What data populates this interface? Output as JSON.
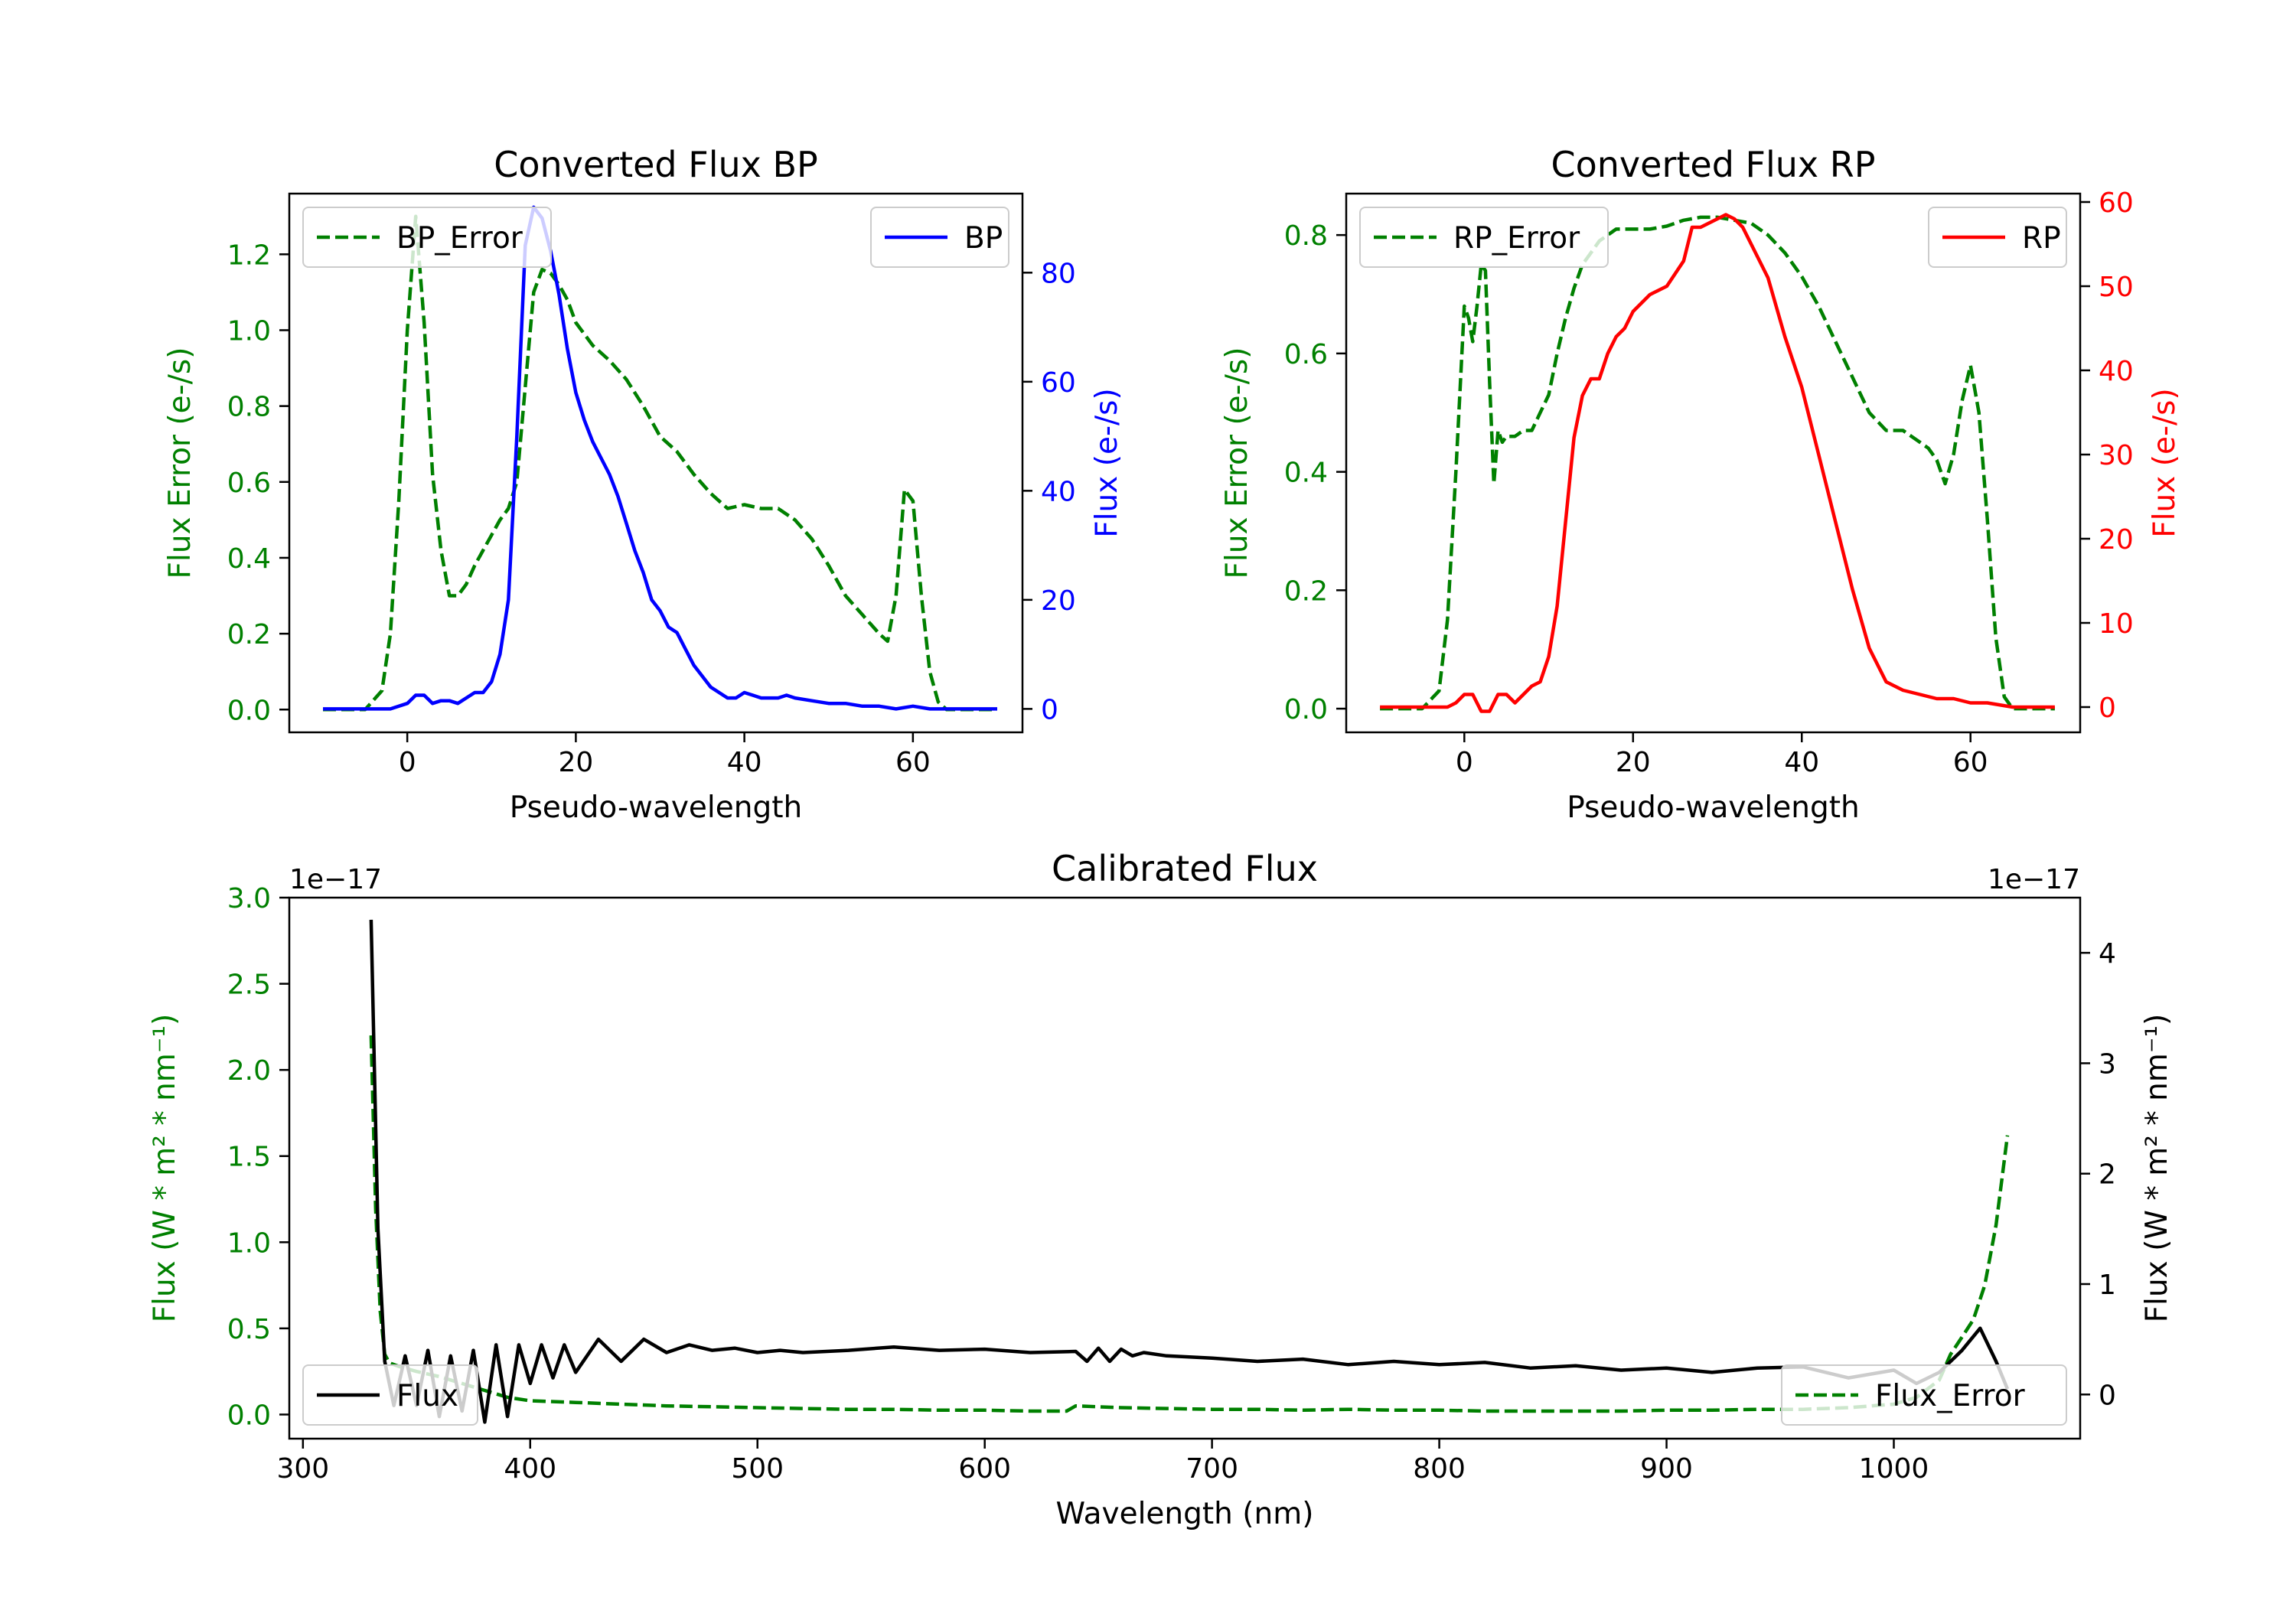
{
  "chart_data": [
    {
      "type": "line",
      "title": "Converted Flux BP",
      "xlabel": "Pseudo-wavelength",
      "xlim": [
        -14,
        73
      ],
      "x_ticks": [
        0,
        20,
        40,
        60
      ],
      "left_axis": {
        "label": "Flux Error (e-/s)",
        "color": "#008000",
        "ylim": [
          -0.06,
          1.36
        ],
        "ticks": [
          0.0,
          0.2,
          0.4,
          0.6,
          0.8,
          1.0,
          1.2
        ],
        "tick_labels": [
          "0.0",
          "0.2",
          "0.4",
          "0.6",
          "0.8",
          "1.0",
          "1.2"
        ]
      },
      "right_axis": {
        "label": "Flux (e-/s)",
        "color": "#0000ff",
        "ylim": [
          -4.3,
          94.5
        ],
        "ticks": [
          0,
          20,
          40,
          60,
          80
        ],
        "tick_labels": [
          "0",
          "20",
          "40",
          "60",
          "80"
        ]
      },
      "series": [
        {
          "name": "BP_Error",
          "axis": "left",
          "color": "#008000",
          "dash": true,
          "x": [
            -10,
            -5,
            -3,
            -2,
            -1,
            0,
            1,
            2,
            3,
            4,
            5,
            6,
            7,
            8,
            9,
            10,
            11,
            12,
            13,
            14,
            15,
            16,
            17,
            18,
            19,
            20,
            22,
            24,
            26,
            28,
            30,
            32,
            34,
            36,
            38,
            40,
            42,
            44,
            46,
            48,
            50,
            52,
            54,
            56,
            57,
            58,
            59,
            60,
            61,
            62,
            63,
            64,
            65,
            70
          ],
          "y": [
            0.0,
            0.0,
            0.05,
            0.2,
            0.55,
            1.0,
            1.3,
            1.02,
            0.62,
            0.42,
            0.3,
            0.3,
            0.33,
            0.38,
            0.42,
            0.46,
            0.5,
            0.53,
            0.6,
            0.85,
            1.1,
            1.16,
            1.15,
            1.12,
            1.08,
            1.02,
            0.96,
            0.92,
            0.87,
            0.8,
            0.72,
            0.68,
            0.62,
            0.57,
            0.53,
            0.54,
            0.53,
            0.53,
            0.5,
            0.45,
            0.38,
            0.3,
            0.25,
            0.2,
            0.18,
            0.3,
            0.58,
            0.55,
            0.3,
            0.1,
            0.02,
            0.0,
            0.0,
            0.0
          ]
        },
        {
          "name": "BP",
          "axis": "right",
          "color": "#0000ff",
          "dash": false,
          "x": [
            -10,
            -5,
            -2,
            0,
            1,
            2,
            3,
            4,
            5,
            6,
            7,
            8,
            9,
            10,
            11,
            12,
            13,
            14,
            15,
            16,
            17,
            18,
            19,
            20,
            21,
            22,
            23,
            24,
            25,
            26,
            27,
            28,
            29,
            30,
            31,
            32,
            33,
            34,
            35,
            36,
            37,
            38,
            39,
            40,
            41,
            42,
            43,
            44,
            45,
            46,
            48,
            50,
            52,
            54,
            56,
            58,
            60,
            62,
            65,
            70
          ],
          "y": [
            0,
            0,
            0,
            1,
            2.5,
            2.5,
            1,
            1.5,
            1.5,
            1,
            2,
            3,
            3,
            5,
            10,
            20,
            50,
            85,
            92,
            90,
            84,
            76,
            66,
            58,
            53,
            49,
            46,
            43,
            39,
            34,
            29,
            25,
            20,
            18,
            15,
            14,
            11,
            8,
            6,
            4,
            3,
            2,
            2,
            3,
            2.5,
            2,
            2,
            2,
            2.5,
            2,
            1.5,
            1,
            1,
            0.5,
            0.5,
            0,
            0.5,
            0,
            0,
            0
          ]
        }
      ],
      "legends": [
        {
          "position": "upper left",
          "entries": [
            "BP_Error"
          ]
        },
        {
          "position": "upper right",
          "entries": [
            "BP"
          ]
        }
      ]
    },
    {
      "type": "line",
      "title": "Converted Flux RP",
      "xlabel": "Pseudo-wavelength",
      "xlim": [
        -14,
        73
      ],
      "x_ticks": [
        0,
        20,
        40,
        60
      ],
      "left_axis": {
        "label": "Flux Error (e-/s)",
        "color": "#008000",
        "ylim": [
          -0.04,
          0.87
        ],
        "ticks": [
          0.0,
          0.2,
          0.4,
          0.6,
          0.8
        ],
        "tick_labels": [
          "0.0",
          "0.2",
          "0.4",
          "0.6",
          "0.8"
        ]
      },
      "right_axis": {
        "label": "Flux (e-/s)",
        "color": "#ff0000",
        "ylim": [
          -3,
          61
        ],
        "ticks": [
          0,
          10,
          20,
          30,
          40,
          50,
          60
        ],
        "tick_labels": [
          "0",
          "10",
          "20",
          "30",
          "40",
          "50",
          "60"
        ]
      },
      "series": [
        {
          "name": "RP_Error",
          "axis": "left",
          "color": "#008000",
          "dash": true,
          "x": [
            -10,
            -5,
            -3,
            -2,
            -1,
            0,
            0.5,
            1,
            1.5,
            2,
            2.5,
            3,
            3.5,
            4,
            4.5,
            5,
            6,
            7,
            8,
            9,
            10,
            11,
            12,
            13,
            14,
            15,
            16,
            18,
            20,
            22,
            24,
            26,
            28,
            30,
            32,
            34,
            36,
            38,
            40,
            42,
            44,
            46,
            48,
            50,
            52,
            53,
            54,
            55,
            56,
            57,
            58,
            59,
            60,
            61,
            62,
            63,
            64,
            65,
            70
          ],
          "y": [
            0.0,
            0.0,
            0.03,
            0.15,
            0.4,
            0.68,
            0.66,
            0.62,
            0.68,
            0.75,
            0.74,
            0.55,
            0.38,
            0.47,
            0.45,
            0.46,
            0.46,
            0.47,
            0.47,
            0.5,
            0.53,
            0.6,
            0.66,
            0.71,
            0.75,
            0.77,
            0.79,
            0.81,
            0.81,
            0.81,
            0.815,
            0.825,
            0.83,
            0.83,
            0.825,
            0.82,
            0.8,
            0.77,
            0.73,
            0.68,
            0.62,
            0.56,
            0.5,
            0.47,
            0.47,
            0.46,
            0.45,
            0.44,
            0.42,
            0.38,
            0.43,
            0.52,
            0.58,
            0.5,
            0.32,
            0.12,
            0.02,
            0.0,
            0.0
          ]
        },
        {
          "name": "RP",
          "axis": "right",
          "color": "#ff0000",
          "dash": false,
          "x": [
            -10,
            -5,
            -2,
            -1,
            0,
            1,
            2,
            3,
            4,
            5,
            6,
            7,
            8,
            9,
            10,
            11,
            12,
            13,
            14,
            15,
            16,
            17,
            18,
            19,
            20,
            22,
            24,
            26,
            27,
            28,
            29,
            30,
            31,
            32,
            33,
            34,
            35,
            36,
            38,
            40,
            42,
            44,
            46,
            48,
            50,
            52,
            54,
            56,
            58,
            60,
            62,
            65,
            70
          ],
          "y": [
            0,
            0,
            0,
            0.5,
            1.5,
            1.5,
            -0.5,
            -0.5,
            1.5,
            1.5,
            0.5,
            1.5,
            2.5,
            3,
            6,
            12,
            22,
            32,
            37,
            39,
            39,
            42,
            44,
            45,
            47,
            49,
            50,
            53,
            57,
            57,
            57.5,
            58,
            58.5,
            58,
            57,
            55,
            53,
            51,
            44,
            38,
            30,
            22,
            14,
            7,
            3,
            2,
            1.5,
            1,
            1,
            0.5,
            0.5,
            0,
            0
          ]
        }
      ],
      "legends": [
        {
          "position": "upper left",
          "entries": [
            "RP_Error"
          ]
        },
        {
          "position": "upper right",
          "entries": [
            "RP"
          ]
        }
      ]
    },
    {
      "type": "line",
      "title": "Calibrated Flux",
      "xlabel": "Wavelength (nm)",
      "xlim": [
        294,
        1082
      ],
      "x_ticks": [
        300,
        400,
        500,
        600,
        700,
        800,
        900,
        1000
      ],
      "left_axis": {
        "label": "Flux (W * m² * nm⁻¹)",
        "color": "#008000",
        "offset_text": "1e−17",
        "ylim": [
          -0.14,
          3.0
        ],
        "ticks": [
          0.0,
          0.5,
          1.0,
          1.5,
          2.0,
          2.5,
          3.0
        ],
        "tick_labels": [
          "0.0",
          "0.5",
          "1.0",
          "1.5",
          "2.0",
          "2.5",
          "3.0"
        ]
      },
      "right_axis": {
        "label": "Flux (W * m² * nm⁻¹)",
        "color": "#000000",
        "offset_text": "1e−17",
        "ylim": [
          -0.4,
          4.5
        ],
        "ticks": [
          0,
          1,
          2,
          3,
          4
        ],
        "tick_labels": [
          "0",
          "1",
          "2",
          "3",
          "4"
        ]
      },
      "series": [
        {
          "name": "Flux_Error",
          "axis": "left",
          "color": "#008000",
          "dash": true,
          "x": [
            330,
            332,
            334,
            336,
            338,
            342,
            350,
            360,
            370,
            380,
            390,
            400,
            420,
            440,
            460,
            480,
            500,
            520,
            540,
            560,
            580,
            600,
            620,
            636,
            640,
            660,
            680,
            700,
            720,
            740,
            760,
            780,
            800,
            820,
            840,
            860,
            880,
            900,
            920,
            940,
            960,
            980,
            1000,
            1010,
            1020,
            1025,
            1030,
            1035,
            1040,
            1045,
            1050
          ],
          "y": [
            2.2,
            1.2,
            0.6,
            0.35,
            0.3,
            0.28,
            0.25,
            0.22,
            0.18,
            0.14,
            0.1,
            0.08,
            0.07,
            0.06,
            0.05,
            0.045,
            0.04,
            0.035,
            0.03,
            0.03,
            0.025,
            0.025,
            0.02,
            0.02,
            0.05,
            0.04,
            0.035,
            0.03,
            0.03,
            0.025,
            0.03,
            0.025,
            0.025,
            0.02,
            0.02,
            0.02,
            0.02,
            0.025,
            0.025,
            0.03,
            0.03,
            0.04,
            0.06,
            0.1,
            0.2,
            0.35,
            0.45,
            0.55,
            0.75,
            1.1,
            1.62
          ]
        },
        {
          "name": "Flux",
          "axis": "right",
          "color": "#000000",
          "dash": false,
          "x": [
            330,
            333,
            336,
            340,
            345,
            350,
            355,
            360,
            365,
            370,
            375,
            380,
            385,
            390,
            395,
            400,
            405,
            410,
            415,
            420,
            430,
            440,
            450,
            460,
            470,
            480,
            490,
            500,
            510,
            520,
            540,
            560,
            580,
            600,
            620,
            640,
            645,
            650,
            655,
            660,
            665,
            670,
            680,
            700,
            720,
            740,
            760,
            780,
            800,
            820,
            840,
            860,
            880,
            900,
            920,
            940,
            960,
            980,
            1000,
            1010,
            1020,
            1030,
            1038,
            1045,
            1050
          ],
          "y": [
            4.3,
            1.5,
            0.3,
            -0.1,
            0.35,
            -0.1,
            0.4,
            -0.2,
            0.35,
            -0.15,
            0.4,
            -0.25,
            0.45,
            -0.2,
            0.45,
            0.1,
            0.45,
            0.15,
            0.45,
            0.2,
            0.5,
            0.3,
            0.5,
            0.38,
            0.45,
            0.4,
            0.42,
            0.38,
            0.4,
            0.38,
            0.4,
            0.43,
            0.4,
            0.41,
            0.38,
            0.39,
            0.3,
            0.42,
            0.3,
            0.41,
            0.35,
            0.38,
            0.35,
            0.33,
            0.3,
            0.32,
            0.27,
            0.3,
            0.27,
            0.29,
            0.24,
            0.26,
            0.22,
            0.24,
            0.2,
            0.24,
            0.25,
            0.15,
            0.22,
            0.1,
            0.2,
            0.4,
            0.6,
            0.3,
            0.05
          ]
        }
      ],
      "legends": [
        {
          "position": "lower left",
          "entries": [
            "Flux"
          ]
        },
        {
          "position": "lower right",
          "entries": [
            "Flux_Error"
          ]
        }
      ]
    }
  ]
}
